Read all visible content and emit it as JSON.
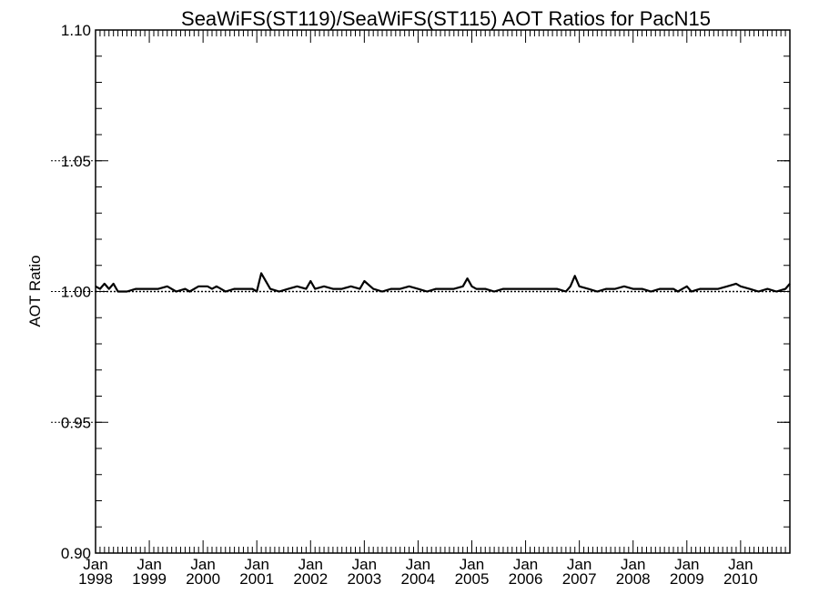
{
  "chart_data": {
    "type": "line",
    "title": "SeaWiFS(ST119)/SeaWiFS(ST115)  AOT Ratios for PacN15",
    "xlabel": "",
    "ylabel": "AOT Ratio",
    "ylim": [
      0.9,
      1.1
    ],
    "xlim": [
      "1998-01",
      "2010-12"
    ],
    "y_ticks": [
      "0.90",
      "0.95",
      "1.00",
      "1.05",
      "1.10"
    ],
    "x_ticks": [
      {
        "month": "Jan",
        "year": "1998"
      },
      {
        "month": "Jan",
        "year": "1999"
      },
      {
        "month": "Jan",
        "year": "2000"
      },
      {
        "month": "Jan",
        "year": "2001"
      },
      {
        "month": "Jan",
        "year": "2002"
      },
      {
        "month": "Jan",
        "year": "2003"
      },
      {
        "month": "Jan",
        "year": "2004"
      },
      {
        "month": "Jan",
        "year": "2005"
      },
      {
        "month": "Jan",
        "year": "2006"
      },
      {
        "month": "Jan",
        "year": "2007"
      },
      {
        "month": "Jan",
        "year": "2008"
      },
      {
        "month": "Jan",
        "year": "2009"
      },
      {
        "month": "Jan",
        "year": "2010"
      }
    ],
    "reference_line": 1.0,
    "grid": false,
    "series": [
      {
        "x": [
          "1998-01",
          "1998-02",
          "1998-03",
          "1998-04",
          "1998-05",
          "1998-06",
          "1998-08",
          "1998-10",
          "1998-12",
          "1999-02",
          "1999-03",
          "1999-05",
          "1999-07",
          "1999-09",
          "1999-10",
          "1999-12",
          "2000-02",
          "2000-03",
          "2000-04",
          "2000-05",
          "2000-06",
          "2000-08",
          "2000-10",
          "2000-12",
          "2001-01",
          "2001-02",
          "2001-04",
          "2001-06",
          "2001-08",
          "2001-10",
          "2001-12",
          "2002-01",
          "2002-02",
          "2002-04",
          "2002-06",
          "2002-08",
          "2002-10",
          "2002-12",
          "2003-01",
          "2003-03",
          "2003-05",
          "2003-07",
          "2003-09",
          "2003-11",
          "2004-01",
          "2004-03",
          "2004-05",
          "2004-07",
          "2004-09",
          "2004-11",
          "2004-12",
          "2005-01",
          "2005-02",
          "2005-04",
          "2005-06",
          "2005-08",
          "2005-10",
          "2005-12",
          "2006-02",
          "2006-04",
          "2006-06",
          "2006-08",
          "2006-10",
          "2006-11",
          "2006-12",
          "2007-01",
          "2007-03",
          "2007-05",
          "2007-07",
          "2007-09",
          "2007-11",
          "2008-01",
          "2008-03",
          "2008-05",
          "2008-07",
          "2008-09",
          "2008-10",
          "2008-11",
          "2008-12",
          "2009-01",
          "2009-02",
          "2009-04",
          "2009-06",
          "2009-08",
          "2009-10",
          "2009-12",
          "2010-01",
          "2010-03",
          "2010-05",
          "2010-07",
          "2010-09",
          "2010-11",
          "2010-12"
        ],
        "y": [
          1.002,
          1.001,
          1.003,
          1.001,
          1.003,
          1.0,
          1.0,
          1.001,
          1.001,
          1.001,
          1.001,
          1.002,
          1.0,
          1.001,
          1.0,
          1.002,
          1.002,
          1.001,
          1.002,
          1.001,
          1.0,
          1.001,
          1.001,
          1.001,
          1.0,
          1.007,
          1.001,
          1.0,
          1.001,
          1.002,
          1.001,
          1.004,
          1.001,
          1.002,
          1.001,
          1.001,
          1.002,
          1.001,
          1.004,
          1.001,
          1.0,
          1.001,
          1.001,
          1.002,
          1.001,
          1.0,
          1.001,
          1.001,
          1.001,
          1.002,
          1.005,
          1.002,
          1.001,
          1.001,
          1.0,
          1.001,
          1.001,
          1.001,
          1.001,
          1.001,
          1.001,
          1.001,
          1.0,
          1.002,
          1.006,
          1.002,
          1.001,
          1.0,
          1.001,
          1.001,
          1.002,
          1.001,
          1.001,
          1.0,
          1.001,
          1.001,
          1.001,
          1.0,
          1.001,
          1.002,
          1.0,
          1.001,
          1.001,
          1.001,
          1.002,
          1.003,
          1.002,
          1.001,
          1.0,
          1.001,
          1.0,
          1.001,
          1.003
        ]
      }
    ]
  }
}
